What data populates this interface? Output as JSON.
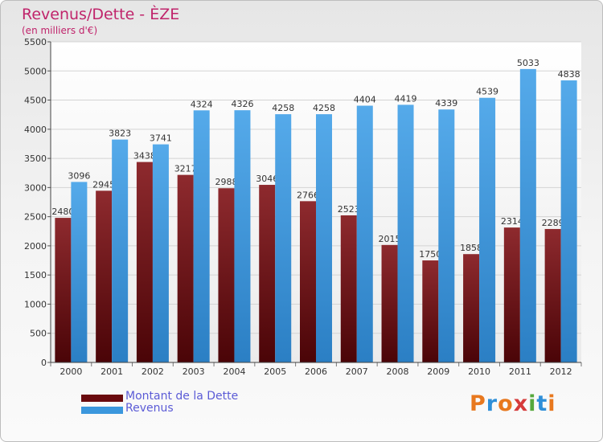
{
  "title": "Revenus/Dette - ÈZE",
  "subtitle": "(en milliers d'€)",
  "logo_text": "Proxiti",
  "logo_colors": [
    "#e8781e",
    "#2f8fd8",
    "#e8781e",
    "#d63b3b",
    "#56a83c",
    "#2f8fd8",
    "#e8781e"
  ],
  "colors": {
    "debt": "#7a1418",
    "revenue": "#3b97dd",
    "text_accent": "#c0246b",
    "legend_text": "#5b5bd6"
  },
  "chart_data": {
    "type": "bar",
    "categories": [
      "2000",
      "2001",
      "2002",
      "2003",
      "2004",
      "2005",
      "2006",
      "2007",
      "2008",
      "2009",
      "2010",
      "2011",
      "2012"
    ],
    "series": [
      {
        "name": "Montant de la Dette",
        "values": [
          2480,
          2945,
          3438,
          3217,
          2988,
          3046,
          2766,
          2523,
          2015,
          1750,
          1858,
          2314,
          2289
        ]
      },
      {
        "name": "Revenus",
        "values": [
          3096,
          3823,
          3741,
          4324,
          4326,
          4258,
          4258,
          4404,
          4419,
          4339,
          4539,
          5033,
          4838
        ]
      }
    ],
    "ylim": [
      0,
      5500
    ],
    "yticks": [
      0,
      500,
      1000,
      1500,
      2000,
      2500,
      3000,
      3500,
      4000,
      4500,
      5000,
      5500
    ],
    "grid": true,
    "legend": "bottom-left"
  }
}
